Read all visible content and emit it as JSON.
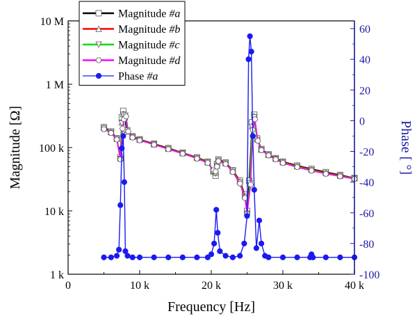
{
  "chart_data": {
    "type": "line",
    "xlabel": "Frequency [Hz]",
    "ylabel_left": "Magnitude [Ω]",
    "ylabel_right": "Phase [ °]",
    "x_range": [
      0,
      40000
    ],
    "y_left_range": [
      1000,
      10000000
    ],
    "y_left_scale": "log",
    "y_right_range": [
      -100,
      65
    ],
    "x_ticks": [
      {
        "value": 0,
        "label": "0"
      },
      {
        "value": 10000,
        "label": "10 k"
      },
      {
        "value": 20000,
        "label": "20 k"
      },
      {
        "value": 30000,
        "label": "30 k"
      },
      {
        "value": 40000,
        "label": "40 k"
      }
    ],
    "y_left_ticks": [
      {
        "value": 1000,
        "label": "1 k"
      },
      {
        "value": 10000,
        "label": "10 k"
      },
      {
        "value": 100000,
        "label": "100 k"
      },
      {
        "value": 1000000,
        "label": "1 M"
      },
      {
        "value": 10000000,
        "label": "10 M"
      }
    ],
    "y_right_ticks": [
      {
        "value": -100,
        "label": "-100"
      },
      {
        "value": -80,
        "label": "-80"
      },
      {
        "value": -60,
        "label": "-60"
      },
      {
        "value": -40,
        "label": "-40"
      },
      {
        "value": -20,
        "label": "-20"
      },
      {
        "value": 0,
        "label": "0"
      },
      {
        "value": 20,
        "label": "20"
      },
      {
        "value": 40,
        "label": "40"
      },
      {
        "value": 60,
        "label": "60"
      }
    ],
    "legend_position": "top-left",
    "legend": [
      {
        "label": "Magnitude ",
        "suffix": "#a",
        "color": "#000000",
        "marker": "square"
      },
      {
        "label": "Magnitude ",
        "suffix": "#b",
        "color": "#ff0000",
        "marker": "triangle-up"
      },
      {
        "label": "Magnitude ",
        "suffix": "#c",
        "color": "#00dd00",
        "marker": "triangle-down"
      },
      {
        "label": "Magnitude ",
        "suffix": "#d",
        "color": "#ff00ff",
        "marker": "hexagon"
      },
      {
        "label": "Phase ",
        "suffix": "#a",
        "color": "#1a1af0",
        "marker": "circle"
      }
    ],
    "series": [
      {
        "name": "Magnitude #a",
        "axis": "left",
        "color": "#000000",
        "points": [
          [
            5000,
            210000
          ],
          [
            6000,
            180000
          ],
          [
            6800,
            140000
          ],
          [
            7300,
            70000
          ],
          [
            7500,
            300000
          ],
          [
            7700,
            380000
          ],
          [
            7900,
            300000
          ],
          [
            8200,
            180000
          ],
          [
            9000,
            150000
          ],
          [
            10000,
            135000
          ],
          [
            12000,
            115000
          ],
          [
            14000,
            98000
          ],
          [
            16000,
            83000
          ],
          [
            18000,
            70000
          ],
          [
            19500,
            60000
          ],
          [
            20300,
            42000
          ],
          [
            20600,
            36000
          ],
          [
            20800,
            55000
          ],
          [
            21000,
            65000
          ],
          [
            22000,
            58000
          ],
          [
            23000,
            44000
          ],
          [
            24000,
            30000
          ],
          [
            24700,
            18000
          ],
          [
            25000,
            10000
          ],
          [
            25300,
            30000
          ],
          [
            25700,
            250000
          ],
          [
            26000,
            330000
          ],
          [
            26400,
            140000
          ],
          [
            27000,
            95000
          ],
          [
            28000,
            78000
          ],
          [
            29000,
            68000
          ],
          [
            30000,
            60000
          ],
          [
            32000,
            52000
          ],
          [
            34000,
            46000
          ],
          [
            36000,
            41000
          ],
          [
            38000,
            37000
          ],
          [
            40000,
            33000
          ]
        ]
      },
      {
        "name": "Magnitude #b",
        "axis": "left",
        "color": "#ff0000",
        "points": [
          [
            5000,
            205000
          ],
          [
            6000,
            175000
          ],
          [
            6800,
            138000
          ],
          [
            7300,
            68000
          ],
          [
            7500,
            250000
          ],
          [
            7700,
            340000
          ],
          [
            8000,
            330000
          ],
          [
            8300,
            190000
          ],
          [
            9000,
            148000
          ],
          [
            10000,
            133000
          ],
          [
            12000,
            113000
          ],
          [
            14000,
            96000
          ],
          [
            16000,
            82000
          ],
          [
            18000,
            69000
          ],
          [
            19500,
            59000
          ],
          [
            20300,
            43000
          ],
          [
            20600,
            40000
          ],
          [
            20800,
            52000
          ],
          [
            21000,
            63000
          ],
          [
            22000,
            57000
          ],
          [
            23000,
            43000
          ],
          [
            24000,
            29000
          ],
          [
            24700,
            17000
          ],
          [
            25000,
            9500
          ],
          [
            25400,
            28000
          ],
          [
            25700,
            220000
          ],
          [
            26000,
            310000
          ],
          [
            26400,
            135000
          ],
          [
            27000,
            93000
          ],
          [
            28000,
            77000
          ],
          [
            29000,
            67000
          ],
          [
            30000,
            59000
          ],
          [
            32000,
            51000
          ],
          [
            34000,
            45000
          ],
          [
            36000,
            40000
          ],
          [
            38000,
            36000
          ],
          [
            40000,
            33000
          ]
        ]
      },
      {
        "name": "Magnitude #c",
        "axis": "left",
        "color": "#00dd00",
        "points": [
          [
            5000,
            200000
          ],
          [
            6000,
            172000
          ],
          [
            6800,
            136000
          ],
          [
            7300,
            66000
          ],
          [
            7500,
            240000
          ],
          [
            7700,
            330000
          ],
          [
            8000,
            320000
          ],
          [
            8300,
            185000
          ],
          [
            9000,
            146000
          ],
          [
            10000,
            131000
          ],
          [
            12000,
            112000
          ],
          [
            14000,
            95000
          ],
          [
            16000,
            81000
          ],
          [
            18000,
            68000
          ],
          [
            19500,
            58000
          ],
          [
            20300,
            42000
          ],
          [
            20600,
            39000
          ],
          [
            20800,
            51000
          ],
          [
            21000,
            62000
          ],
          [
            22000,
            56000
          ],
          [
            23000,
            42000
          ],
          [
            24000,
            28000
          ],
          [
            24700,
            16500
          ],
          [
            25000,
            9000
          ],
          [
            25400,
            27000
          ],
          [
            25700,
            210000
          ],
          [
            26000,
            300000
          ],
          [
            26400,
            132000
          ],
          [
            27000,
            92000
          ],
          [
            28000,
            76000
          ],
          [
            29000,
            66000
          ],
          [
            30000,
            58000
          ],
          [
            32000,
            50000
          ],
          [
            34000,
            44000
          ],
          [
            36000,
            39000
          ],
          [
            38000,
            35500
          ],
          [
            40000,
            32500
          ]
        ]
      },
      {
        "name": "Magnitude #d",
        "axis": "left",
        "color": "#ff00ff",
        "points": [
          [
            5000,
            195000
          ],
          [
            6000,
            170000
          ],
          [
            6800,
            134000
          ],
          [
            7300,
            65000
          ],
          [
            7600,
            200000
          ],
          [
            7800,
            280000
          ],
          [
            8100,
            310000
          ],
          [
            8400,
            180000
          ],
          [
            9000,
            144000
          ],
          [
            10000,
            130000
          ],
          [
            12000,
            111000
          ],
          [
            14000,
            94000
          ],
          [
            16000,
            80000
          ],
          [
            18000,
            67000
          ],
          [
            19500,
            57000
          ],
          [
            20300,
            44000
          ],
          [
            20600,
            42000
          ],
          [
            20800,
            50000
          ],
          [
            21000,
            61000
          ],
          [
            22000,
            55000
          ],
          [
            23000,
            41000
          ],
          [
            24000,
            27000
          ],
          [
            24700,
            16000
          ],
          [
            25000,
            9000
          ],
          [
            25500,
            26000
          ],
          [
            25800,
            190000
          ],
          [
            26100,
            280000
          ],
          [
            26500,
            128000
          ],
          [
            27000,
            91000
          ],
          [
            28000,
            75000
          ],
          [
            29000,
            65000
          ],
          [
            30000,
            57000
          ],
          [
            32000,
            49000
          ],
          [
            34000,
            43000
          ],
          [
            36000,
            38500
          ],
          [
            38000,
            35000
          ],
          [
            40000,
            32000
          ]
        ]
      },
      {
        "name": "Phase #a",
        "axis": "right",
        "color": "#1a1af0",
        "points": [
          [
            5000,
            -89
          ],
          [
            6000,
            -89
          ],
          [
            6800,
            -88
          ],
          [
            7100,
            -84
          ],
          [
            7300,
            -55
          ],
          [
            7500,
            -18
          ],
          [
            7700,
            -10
          ],
          [
            7850,
            -40
          ],
          [
            8000,
            -85
          ],
          [
            8300,
            -88
          ],
          [
            9000,
            -89
          ],
          [
            10000,
            -89
          ],
          [
            12000,
            -89
          ],
          [
            14000,
            -89
          ],
          [
            16000,
            -89
          ],
          [
            18000,
            -89
          ],
          [
            19500,
            -89
          ],
          [
            20000,
            -87
          ],
          [
            20400,
            -80
          ],
          [
            20700,
            -58
          ],
          [
            20900,
            -73
          ],
          [
            21200,
            -85
          ],
          [
            22000,
            -88
          ],
          [
            23000,
            -89
          ],
          [
            24000,
            -88
          ],
          [
            24600,
            -80
          ],
          [
            25000,
            -62
          ],
          [
            25200,
            40
          ],
          [
            25400,
            55
          ],
          [
            25600,
            45
          ],
          [
            25800,
            -10
          ],
          [
            26000,
            -45
          ],
          [
            26300,
            -83
          ],
          [
            26700,
            -65
          ],
          [
            27000,
            -80
          ],
          [
            27500,
            -88
          ],
          [
            28000,
            -89
          ],
          [
            30000,
            -89
          ],
          [
            32000,
            -89
          ],
          [
            33800,
            -89
          ],
          [
            34000,
            -87
          ],
          [
            34200,
            -89
          ],
          [
            36000,
            -89
          ],
          [
            38000,
            -89
          ],
          [
            40000,
            -89
          ]
        ]
      }
    ]
  }
}
